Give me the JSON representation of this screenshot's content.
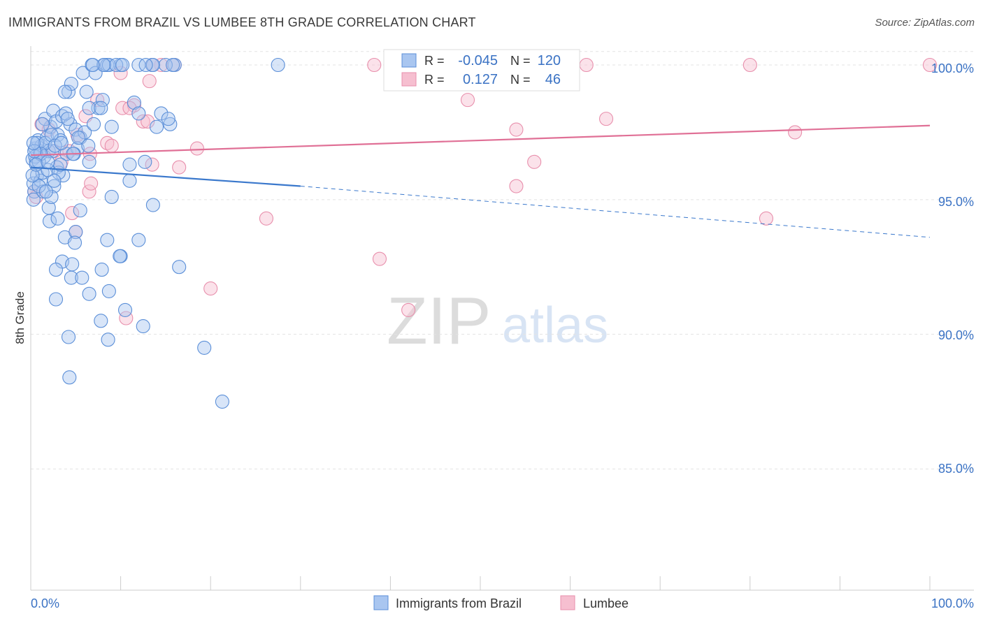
{
  "title": "IMMIGRANTS FROM BRAZIL VS LUMBEE 8TH GRADE CORRELATION CHART",
  "source": "Source: ZipAtlas.com",
  "colors": {
    "brazil_fill": "#a9c6f0",
    "brazil_stroke": "#5b8fd8",
    "brazil_line": "#3a78cc",
    "lumbee_fill": "#f6bfd0",
    "lumbee_stroke": "#e88fac",
    "lumbee_line": "#e07096",
    "value_text": "#3a72c4",
    "grid": "#e3e3e3"
  },
  "chart_data": {
    "type": "scatter",
    "title": "IMMIGRANTS FROM BRAZIL VS LUMBEE 8TH GRADE CORRELATION CHART",
    "xlabel": "",
    "ylabel": "8th Grade",
    "xlim": [
      0,
      100
    ],
    "ylim": [
      80.5,
      100.7
    ],
    "x_tick_labels": [
      "0.0%",
      "100.0%"
    ],
    "y_ticks": [
      85,
      90,
      95,
      100
    ],
    "y_tick_labels": [
      "85.0%",
      "90.0%",
      "95.0%",
      "100.0%"
    ],
    "watermark": {
      "zip": "ZIP",
      "atlas": "atlas"
    },
    "legend_stats": [
      {
        "r_label": "R =",
        "r_value": "-0.045",
        "n_label": "N =",
        "n_value": "120"
      },
      {
        "r_label": "R =",
        "r_value": "0.127",
        "n_label": "N =",
        "n_value": "46"
      }
    ],
    "series": [
      {
        "name": "Immigrants from Brazil",
        "trend": {
          "x0": 0,
          "y0": 96.2,
          "x1": 30,
          "y1": 95.5,
          "dash_x1": 100,
          "dash_y1": 93.6
        },
        "points": [
          [
            0.2,
            96.5
          ],
          [
            0.4,
            95.3
          ],
          [
            0.3,
            95.6
          ],
          [
            0.5,
            96.9
          ],
          [
            0.8,
            97.2
          ],
          [
            0.6,
            96.4
          ],
          [
            1.0,
            96.8
          ],
          [
            0.3,
            95.0
          ],
          [
            0.7,
            95.9
          ],
          [
            1.2,
            97.0
          ],
          [
            1.5,
            96.6
          ],
          [
            1.8,
            97.3
          ],
          [
            1.1,
            95.7
          ],
          [
            1.4,
            95.3
          ],
          [
            2.0,
            96.8
          ],
          [
            2.2,
            97.7
          ],
          [
            1.6,
            98.0
          ],
          [
            2.5,
            98.3
          ],
          [
            2.8,
            97.9
          ],
          [
            3.0,
            97.4
          ],
          [
            3.3,
            97.2
          ],
          [
            2.6,
            95.5
          ],
          [
            2.9,
            96.2
          ],
          [
            3.6,
            95.9
          ],
          [
            4.0,
            96.7
          ],
          [
            3.5,
            98.1
          ],
          [
            4.4,
            97.8
          ],
          [
            5.0,
            97.6
          ],
          [
            5.5,
            97.3
          ],
          [
            6.0,
            97.5
          ],
          [
            5.2,
            96.9
          ],
          [
            6.5,
            96.4
          ],
          [
            7.0,
            97.8
          ],
          [
            7.5,
            98.4
          ],
          [
            8.0,
            98.7
          ],
          [
            4.2,
            99.0
          ],
          [
            5.8,
            99.7
          ],
          [
            6.8,
            100.0
          ],
          [
            8.2,
            100.0
          ],
          [
            10.0,
            100.0
          ],
          [
            12.0,
            100.0
          ],
          [
            13.5,
            100.0
          ],
          [
            16.0,
            100.0
          ],
          [
            27.5,
            100.0
          ],
          [
            8.5,
            100.0
          ],
          [
            7.2,
            99.7
          ],
          [
            6.2,
            99.0
          ],
          [
            4.5,
            99.3
          ],
          [
            3.8,
            99.0
          ],
          [
            11.5,
            98.6
          ],
          [
            12.0,
            98.2
          ],
          [
            14.5,
            98.2
          ],
          [
            15.5,
            97.8
          ],
          [
            14.0,
            97.7
          ],
          [
            9.0,
            97.7
          ],
          [
            6.5,
            98.4
          ],
          [
            4.8,
            96.7
          ],
          [
            2.0,
            94.7
          ],
          [
            2.1,
            94.2
          ],
          [
            3.0,
            94.3
          ],
          [
            5.5,
            94.6
          ],
          [
            3.8,
            93.6
          ],
          [
            5.0,
            93.8
          ],
          [
            4.9,
            93.4
          ],
          [
            8.5,
            93.5
          ],
          [
            12.0,
            93.5
          ],
          [
            10.0,
            92.9
          ],
          [
            9.9,
            92.9
          ],
          [
            7.9,
            92.4
          ],
          [
            3.5,
            92.7
          ],
          [
            2.8,
            92.4
          ],
          [
            4.6,
            92.6
          ],
          [
            4.5,
            92.1
          ],
          [
            5.7,
            92.1
          ],
          [
            6.5,
            91.5
          ],
          [
            8.7,
            91.6
          ],
          [
            2.8,
            91.3
          ],
          [
            10.5,
            90.9
          ],
          [
            7.8,
            90.5
          ],
          [
            12.5,
            90.3
          ],
          [
            4.2,
            89.9
          ],
          [
            8.6,
            89.8
          ],
          [
            19.3,
            89.5
          ],
          [
            4.3,
            88.4
          ],
          [
            21.3,
            87.5
          ],
          [
            12.7,
            96.4
          ],
          [
            11.0,
            96.3
          ],
          [
            11.0,
            95.7
          ],
          [
            9.0,
            95.1
          ],
          [
            13.6,
            94.8
          ],
          [
            16.5,
            92.5
          ],
          [
            2.3,
            95.1
          ],
          [
            0.9,
            95.5
          ],
          [
            1.3,
            96.0
          ],
          [
            0.5,
            96.6
          ],
          [
            1.9,
            96.1
          ],
          [
            2.4,
            96.8
          ],
          [
            3.1,
            96.0
          ],
          [
            0.7,
            97.1
          ],
          [
            1.6,
            97.1
          ],
          [
            0.9,
            96.4
          ],
          [
            1.1,
            96.7
          ],
          [
            0.4,
            96.8
          ],
          [
            0.2,
            95.9
          ],
          [
            0.3,
            97.1
          ],
          [
            1.7,
            95.3
          ],
          [
            2.6,
            95.7
          ],
          [
            3.3,
            96.3
          ],
          [
            4.7,
            96.7
          ],
          [
            5.3,
            97.3
          ],
          [
            6.4,
            97.0
          ],
          [
            7.8,
            98.4
          ],
          [
            8.7,
            100.0
          ],
          [
            9.5,
            100.0
          ],
          [
            10.2,
            100.0
          ],
          [
            8.1,
            100.0
          ],
          [
            6.9,
            100.0
          ],
          [
            3.9,
            98.2
          ],
          [
            2.3,
            97.4
          ],
          [
            1.3,
            97.8
          ],
          [
            0.6,
            96.3
          ],
          [
            1.9,
            96.4
          ],
          [
            2.7,
            97.0
          ],
          [
            3.4,
            97.1
          ],
          [
            4.1,
            98.0
          ],
          [
            15.0,
            100.0
          ],
          [
            15.8,
            100.0
          ],
          [
            15.3,
            98.0
          ],
          [
            13.6,
            100.0
          ],
          [
            12.8,
            100.0
          ]
        ]
      },
      {
        "name": "Lumbee",
        "trend": {
          "x0": 0,
          "y0": 96.65,
          "x1": 100,
          "y1": 97.75
        },
        "points": [
          [
            0.4,
            95.3
          ],
          [
            0.6,
            95.1
          ],
          [
            1.2,
            97.8
          ],
          [
            2.0,
            97.6
          ],
          [
            2.6,
            96.8
          ],
          [
            3.4,
            96.4
          ],
          [
            4.3,
            96.8
          ],
          [
            5.2,
            97.4
          ],
          [
            6.1,
            98.1
          ],
          [
            7.4,
            98.7
          ],
          [
            8.5,
            97.1
          ],
          [
            9.0,
            97.0
          ],
          [
            10.2,
            98.4
          ],
          [
            11.5,
            98.5
          ],
          [
            12.5,
            97.9
          ],
          [
            13.0,
            97.9
          ],
          [
            13.5,
            96.3
          ],
          [
            16.5,
            96.2
          ],
          [
            18.5,
            96.9
          ],
          [
            16.0,
            100.0
          ],
          [
            14.5,
            100.0
          ],
          [
            13.5,
            100.0
          ],
          [
            13.2,
            99.4
          ],
          [
            10.0,
            99.7
          ],
          [
            6.6,
            96.7
          ],
          [
            6.5,
            95.3
          ],
          [
            6.7,
            95.6
          ],
          [
            4.6,
            94.5
          ],
          [
            5.0,
            93.8
          ],
          [
            20.0,
            91.7
          ],
          [
            10.6,
            90.6
          ],
          [
            26.2,
            94.3
          ],
          [
            38.8,
            92.8
          ],
          [
            42.0,
            90.9
          ],
          [
            48.6,
            98.7
          ],
          [
            54.0,
            95.5
          ],
          [
            54.0,
            97.6
          ],
          [
            56.0,
            96.4
          ],
          [
            61.8,
            100.0
          ],
          [
            64.0,
            98.0
          ],
          [
            80.0,
            100.0
          ],
          [
            85.0,
            97.5
          ],
          [
            81.8,
            94.3
          ],
          [
            100.0,
            100.0
          ],
          [
            38.2,
            100.0
          ],
          [
            11.0,
            98.4
          ]
        ]
      }
    ]
  },
  "legend": {
    "items": [
      {
        "label": "Immigrants from Brazil"
      },
      {
        "label": "Lumbee"
      }
    ]
  }
}
